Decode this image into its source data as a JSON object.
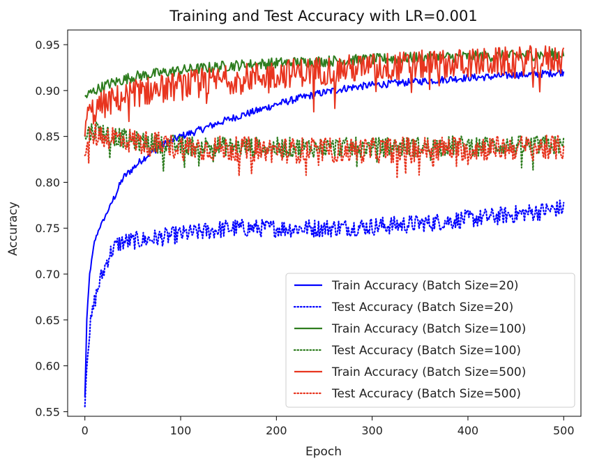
{
  "chart_data": {
    "type": "line",
    "title": "Training and Test Accuracy with LR=0.001",
    "xlabel": "Epoch",
    "ylabel": "Accuracy",
    "xlim": [
      -18,
      518
    ],
    "ylim": [
      0.545,
      0.966
    ],
    "xticks": [
      0,
      100,
      200,
      300,
      400,
      500
    ],
    "xtick_labels": [
      "0",
      "100",
      "200",
      "300",
      "400",
      "500"
    ],
    "yticks": [
      0.55,
      0.6,
      0.65,
      0.7,
      0.75,
      0.8,
      0.85,
      0.9,
      0.95
    ],
    "ytick_labels": [
      "0.55",
      "0.60",
      "0.65",
      "0.70",
      "0.75",
      "0.80",
      "0.85",
      "0.90",
      "0.95"
    ],
    "legend_position": "lower-right",
    "grid": false,
    "series": [
      {
        "name": "Train Accuracy (Batch Size=20)",
        "color": "#0000ff",
        "style": "solid",
        "x": [
          0,
          2,
          5,
          10,
          15,
          20,
          30,
          40,
          50,
          60,
          70,
          80,
          90,
          100,
          120,
          140,
          160,
          180,
          200,
          225,
          250,
          275,
          300,
          325,
          350,
          375,
          400,
          425,
          450,
          475,
          500
        ],
        "values": [
          0.565,
          0.65,
          0.7,
          0.735,
          0.75,
          0.76,
          0.782,
          0.805,
          0.815,
          0.825,
          0.833,
          0.84,
          0.845,
          0.85,
          0.857,
          0.865,
          0.872,
          0.878,
          0.885,
          0.892,
          0.898,
          0.903,
          0.906,
          0.908,
          0.91,
          0.912,
          0.914,
          0.915,
          0.917,
          0.918,
          0.92
        ],
        "noise": 0.004
      },
      {
        "name": "Test Accuracy (Batch Size=20)",
        "color": "#0000ff",
        "style": "dotted",
        "x": [
          0,
          3,
          6,
          10,
          15,
          20,
          25,
          30,
          35,
          40,
          60,
          80,
          100,
          150,
          200,
          250,
          300,
          350,
          400,
          450,
          500
        ],
        "values": [
          0.565,
          0.62,
          0.645,
          0.67,
          0.69,
          0.705,
          0.72,
          0.728,
          0.733,
          0.735,
          0.737,
          0.74,
          0.743,
          0.75,
          0.75,
          0.75,
          0.752,
          0.755,
          0.76,
          0.765,
          0.772
        ],
        "noise": 0.01
      },
      {
        "name": "Train Accuracy (Batch Size=100)",
        "color": "#2e7d1f",
        "style": "solid",
        "x": [
          0,
          10,
          25,
          50,
          100,
          150,
          200,
          250,
          300,
          350,
          400,
          450,
          500
        ],
        "values": [
          0.893,
          0.9,
          0.907,
          0.915,
          0.922,
          0.927,
          0.93,
          0.932,
          0.934,
          0.936,
          0.937,
          0.938,
          0.94
        ],
        "noise": 0.006
      },
      {
        "name": "Test Accuracy (Batch Size=100)",
        "color": "#2e7d1f",
        "style": "dotted",
        "x": [
          0,
          10,
          25,
          50,
          100,
          200,
          300,
          400,
          500
        ],
        "values": [
          0.85,
          0.858,
          0.852,
          0.845,
          0.84,
          0.838,
          0.838,
          0.84,
          0.84
        ],
        "noise": 0.011
      },
      {
        "name": "Train Accuracy (Batch Size=500)",
        "color": "#e8351f",
        "style": "solid",
        "x": [
          0,
          5,
          20,
          50,
          100,
          150,
          200,
          250,
          300,
          350,
          400,
          450,
          500
        ],
        "values": [
          0.865,
          0.875,
          0.885,
          0.897,
          0.905,
          0.912,
          0.918,
          0.922,
          0.925,
          0.928,
          0.93,
          0.932,
          0.935
        ],
        "noise": 0.016
      },
      {
        "name": "Test Accuracy (Batch Size=500)",
        "color": "#e8351f",
        "style": "dotted",
        "x": [
          0,
          10,
          25,
          50,
          100,
          200,
          300,
          400,
          500
        ],
        "values": [
          0.84,
          0.852,
          0.85,
          0.845,
          0.838,
          0.835,
          0.835,
          0.837,
          0.838
        ],
        "noise": 0.014
      }
    ]
  }
}
